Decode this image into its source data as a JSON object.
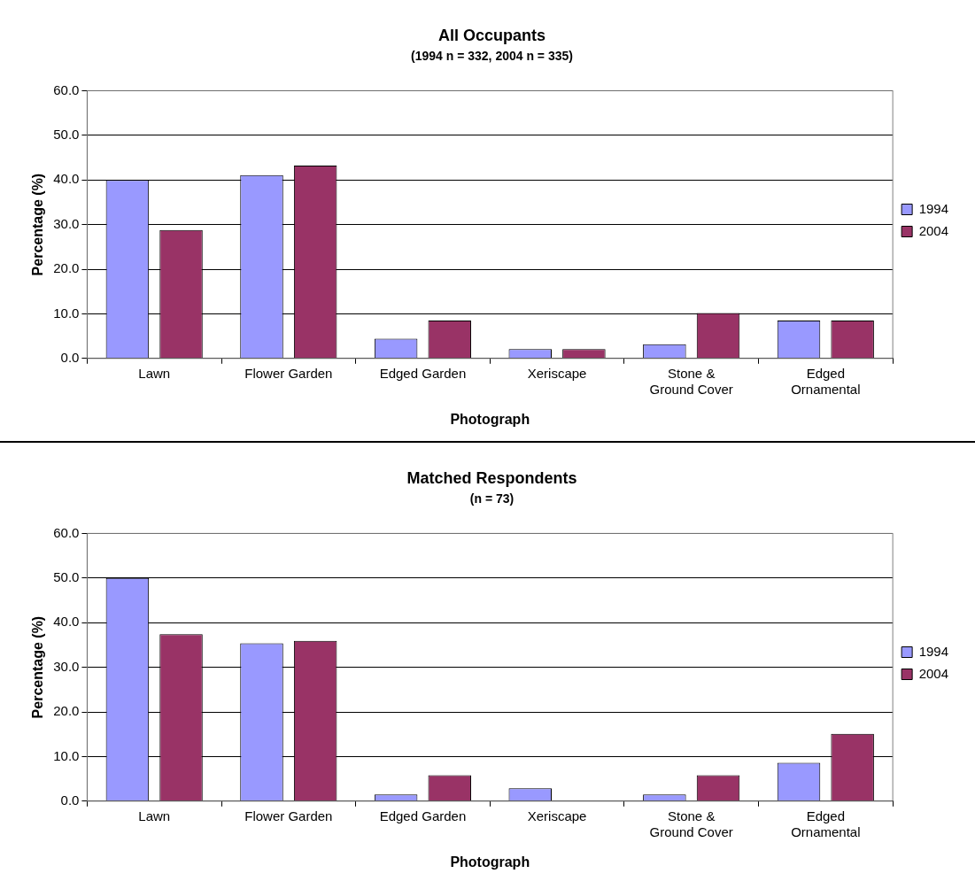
{
  "chart_data": [
    {
      "type": "bar",
      "title": "All Occupants",
      "subtitle": "(1994 n = 332, 2004 n = 335)",
      "xlabel": "Photograph",
      "ylabel": "Percentage (%)",
      "categories": [
        "Lawn",
        "Flower Garden",
        "Edged Garden",
        "Xeriscape",
        "Stone & Ground Cover",
        "Edged Ornamental"
      ],
      "series": [
        {
          "name": "1994",
          "color": "#9999ff",
          "values": [
            40.0,
            41.1,
            4.4,
            2.1,
            3.2,
            8.5
          ]
        },
        {
          "name": "2004",
          "color": "#993366",
          "values": [
            28.8,
            43.2,
            8.5,
            2.1,
            10.2,
            8.5
          ]
        }
      ],
      "ylim": [
        0,
        60
      ],
      "yticks": [
        {
          "value": 0,
          "label": "0.0"
        },
        {
          "value": 10,
          "label": "10.0"
        },
        {
          "value": 20,
          "label": "20.0"
        },
        {
          "value": 30,
          "label": "30.0"
        },
        {
          "value": 40,
          "label": "40.0"
        },
        {
          "value": 50,
          "label": "50.0"
        },
        {
          "value": 60,
          "label": "60.0"
        }
      ],
      "grid": "y",
      "legend": "right"
    },
    {
      "type": "bar",
      "title": "Matched Respondents",
      "subtitle": "(n = 73)",
      "xlabel": "Photograph",
      "ylabel": "Percentage (%)",
      "categories": [
        "Lawn",
        "Flower Garden",
        "Edged Garden",
        "Xeriscape",
        "Stone & Ground Cover",
        "Edged Ornamental"
      ],
      "series": [
        {
          "name": "1994",
          "color": "#9999ff",
          "values": [
            50.0,
            35.4,
            1.5,
            2.9,
            1.5,
            8.6
          ]
        },
        {
          "name": "2004",
          "color": "#993366",
          "values": [
            37.4,
            35.9,
            5.8,
            0,
            5.8,
            15.1
          ]
        }
      ],
      "ylim": [
        0,
        60
      ],
      "yticks": [
        {
          "value": 0,
          "label": "0.0"
        },
        {
          "value": 10,
          "label": "10.0"
        },
        {
          "value": 20,
          "label": "20.0"
        },
        {
          "value": 30,
          "label": "30.0"
        },
        {
          "value": 40,
          "label": "40.0"
        },
        {
          "value": 50,
          "label": "50.0"
        },
        {
          "value": 60,
          "label": "60.0"
        }
      ],
      "grid": "y",
      "legend": "right"
    }
  ]
}
